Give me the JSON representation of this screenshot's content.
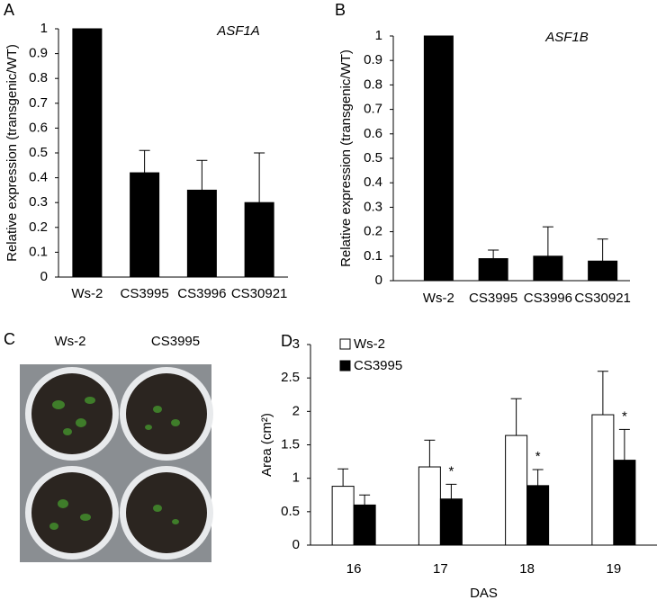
{
  "panel_labels": [
    "A",
    "B",
    "C",
    "D"
  ],
  "photo": {
    "labels": [
      "Ws-2",
      "CS3995"
    ]
  },
  "chart_data": [
    {
      "type": "bar",
      "title": "ASF1A",
      "ylabel": "Relative expression (transgenic/WT)",
      "categories": [
        "Ws-2",
        "CS3995",
        "CS3996",
        "CS30921"
      ],
      "series": [
        {
          "name": null,
          "color": "#000000",
          "values": [
            1,
            0.42,
            0.35,
            0.3
          ],
          "errors": [
            null,
            0.09,
            0.12,
            0.2
          ]
        }
      ],
      "ylim": [
        0,
        1
      ],
      "yticks": [
        0,
        0.1,
        0.2,
        0.3,
        0.4,
        0.5,
        0.6,
        0.7,
        0.8,
        0.9,
        1
      ]
    },
    {
      "type": "bar",
      "title": "ASF1B",
      "ylabel": "Relative expression (transgenic/WT)",
      "categories": [
        "Ws-2",
        "CS3995",
        "CS3996",
        "CS30921"
      ],
      "series": [
        {
          "name": null,
          "color": "#000000",
          "values": [
            1,
            0.09,
            0.1,
            0.08
          ],
          "errors": [
            null,
            0.035,
            0.12,
            0.09
          ]
        }
      ],
      "ylim": [
        0,
        1
      ],
      "yticks": [
        0,
        0.1,
        0.2,
        0.3,
        0.4,
        0.5,
        0.6,
        0.7,
        0.8,
        0.9,
        1
      ]
    },
    {
      "type": "grouped-bar",
      "xlabel": "DAS",
      "ylabel": "Area (cm²)",
      "categories": [
        "16",
        "17",
        "18",
        "19"
      ],
      "series": [
        {
          "name": "Ws-2",
          "color": "#ffffff",
          "values": [
            0.88,
            1.17,
            1.64,
            1.95
          ],
          "errors": [
            0.26,
            0.4,
            0.55,
            0.65
          ]
        },
        {
          "name": "CS3995",
          "color": "#000000",
          "values": [
            0.6,
            0.69,
            0.89,
            1.27
          ],
          "errors": [
            0.15,
            0.22,
            0.24,
            0.46
          ]
        }
      ],
      "significance": [
        null,
        "*",
        "*",
        "*"
      ],
      "ylim": [
        0,
        3
      ],
      "yticks": [
        0,
        0.5,
        1,
        1.5,
        2,
        2.5,
        3
      ],
      "legend": "top-left"
    }
  ]
}
